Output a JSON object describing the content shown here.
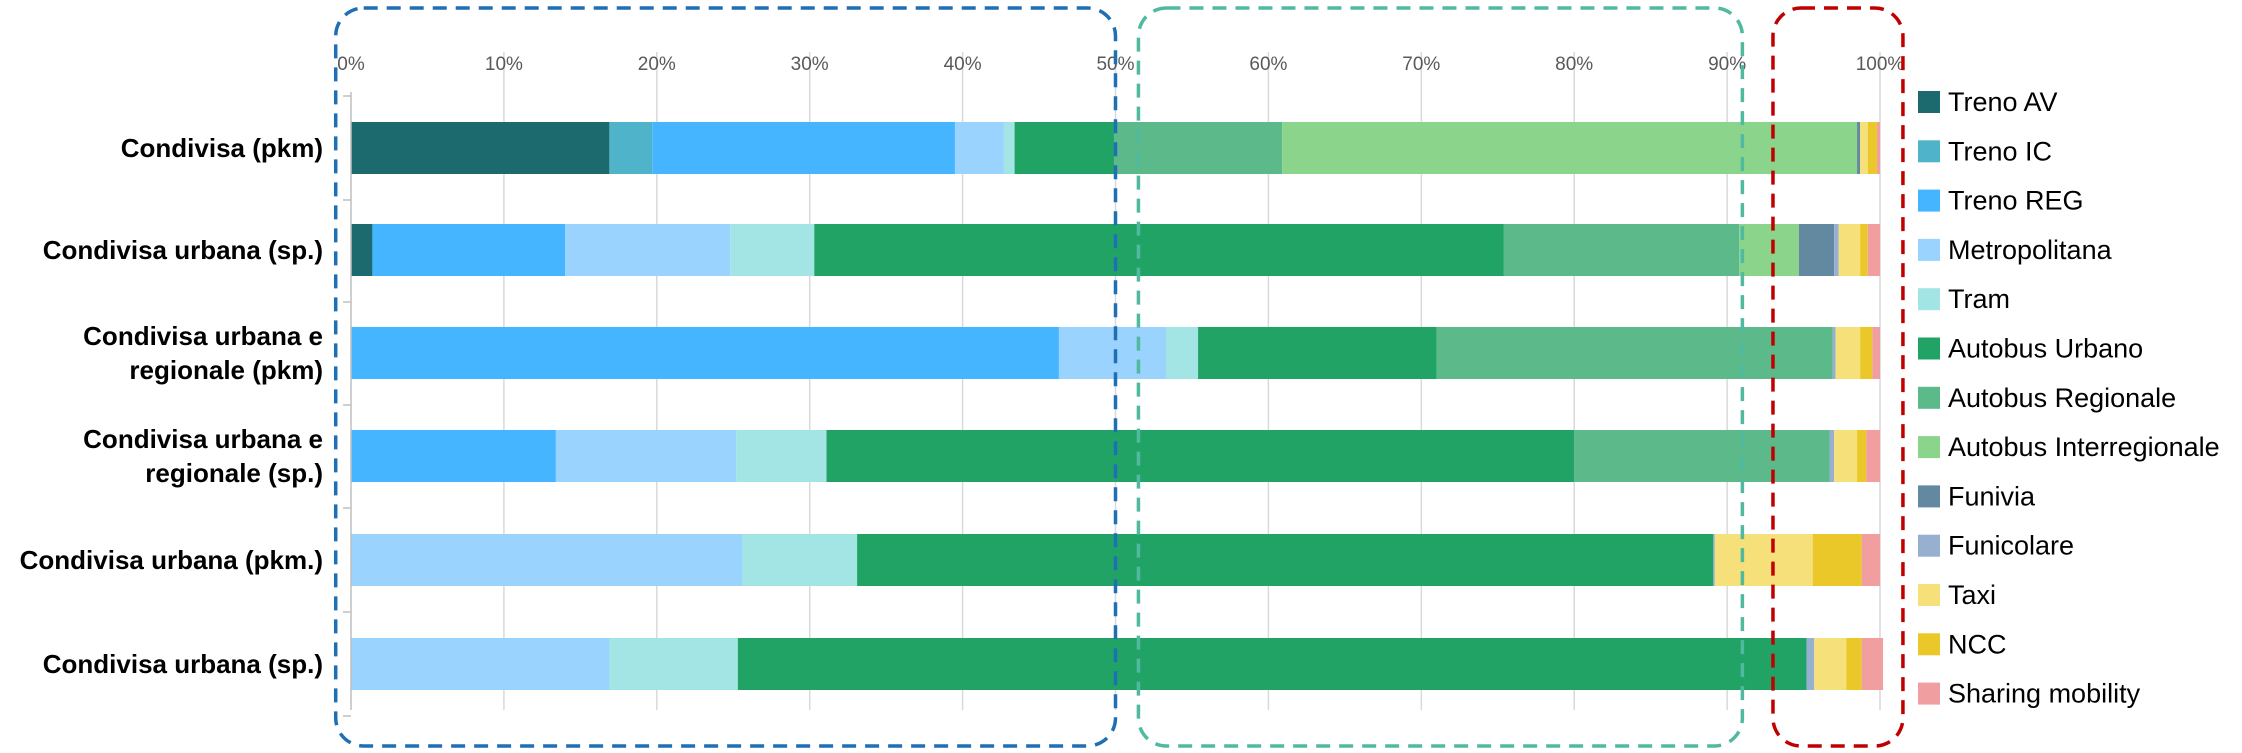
{
  "chart_data": {
    "type": "bar",
    "orientation": "horizontal",
    "stacked": "percent",
    "title": "",
    "xlabel": "",
    "ylabel": "",
    "xlim": [
      0,
      100
    ],
    "x_ticks": [
      "0%",
      "10%",
      "20%",
      "30%",
      "40%",
      "50%",
      "60%",
      "70%",
      "80%",
      "90%",
      "100%"
    ],
    "grid": true,
    "legend_position": "right",
    "categories": [
      "Condivisa (pkm)",
      "Condivisa urbana (sp.)",
      "Condivisa urbana e regionale (pkm)",
      "Condivisa urbana e regionale (sp.)",
      "Condivisa urbana (pkm.)",
      "Condivisa urbana (sp.)"
    ],
    "category_label_lines": [
      [
        "Condivisa (pkm)"
      ],
      [
        "Condivisa urbana (sp.)"
      ],
      [
        "Condivisa urbana e",
        "regionale (pkm)"
      ],
      [
        "Condivisa urbana e",
        "regionale (sp.)"
      ],
      [
        "Condivisa urbana (pkm.)"
      ],
      [
        "Condivisa urbana (sp.)"
      ]
    ],
    "series": [
      {
        "name": "Treno AV",
        "color": "#1d6a6e",
        "values": [
          16.9,
          1.4,
          0,
          0,
          0,
          0
        ]
      },
      {
        "name": "Treno IC",
        "color": "#4fb4c9",
        "values": [
          2.8,
          0,
          0,
          0,
          0,
          0
        ]
      },
      {
        "name": "Treno REG",
        "color": "#46b5ff",
        "values": [
          19.8,
          12.6,
          46.3,
          13.4,
          0,
          0
        ]
      },
      {
        "name": "Metropolitana",
        "color": "#99d3fe",
        "values": [
          3.2,
          10.8,
          7.0,
          11.8,
          25.6,
          16.9
        ]
      },
      {
        "name": "Tram",
        "color": "#a3e5e5",
        "values": [
          0.7,
          5.5,
          2.1,
          5.9,
          7.5,
          8.4
        ]
      },
      {
        "name": "Autobus Urbano",
        "color": "#21a366",
        "values": [
          6.5,
          45.1,
          15.6,
          48.9,
          56.0,
          69.9
        ]
      },
      {
        "name": "Autobus Regionale",
        "color": "#5bb98a",
        "values": [
          11.0,
          15.4,
          25.9,
          16.7,
          0,
          0
        ]
      },
      {
        "name": "Autobus Interregionale",
        "color": "#8ad58b",
        "values": [
          37.6,
          3.9,
          0,
          0,
          0,
          0
        ]
      },
      {
        "name": "Funivia",
        "color": "#62899f",
        "values": [
          0.2,
          2.3,
          0,
          0,
          0,
          0
        ]
      },
      {
        "name": "Funicolare",
        "color": "#98b0d0",
        "values": [
          0,
          0.3,
          0.2,
          0.3,
          0.1,
          0.5
        ]
      },
      {
        "name": "Taxi",
        "color": "#f6e07a",
        "values": [
          0.5,
          1.4,
          1.6,
          1.5,
          6.4,
          2.1
        ]
      },
      {
        "name": "NCC",
        "color": "#eac82a",
        "values": [
          0.6,
          0.5,
          0.8,
          0.6,
          3.2,
          1.0
        ]
      },
      {
        "name": "Sharing mobility",
        "color": "#f09ea0",
        "values": [
          0.2,
          0.8,
          0.5,
          0.9,
          1.2,
          1.4
        ]
      }
    ],
    "annotations": [
      {
        "shape": "dashed-rectangle",
        "color": "#1f6fb5",
        "x_range": [
          -1.0,
          50.0
        ],
        "covers": "Treno AV–Tram"
      },
      {
        "shape": "dashed-rectangle",
        "color": "#50b9a0",
        "x_range": [
          51.5,
          91.0
        ],
        "covers": "Autobus"
      },
      {
        "shape": "dashed-rectangle",
        "color": "#c00000",
        "x_range": [
          93.0,
          101.5
        ],
        "covers": "Funivia–Sharing mobility"
      }
    ]
  }
}
